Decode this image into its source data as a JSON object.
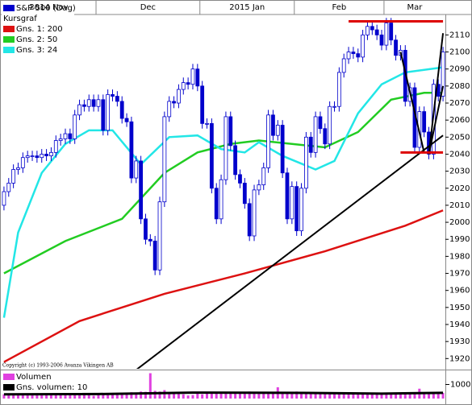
{
  "chart_data": [
    {
      "type": "candlestick",
      "name": "S&P-500 (Dag)",
      "subtitle": "Kursgraf",
      "color": "#0000cc",
      "categories": [
        "2014 Nov",
        null,
        null,
        null,
        null,
        null,
        null,
        null,
        null,
        null,
        null,
        null,
        null,
        null,
        null,
        null,
        null,
        null,
        null,
        null,
        "Dec",
        null,
        null,
        null,
        null,
        null,
        null,
        null,
        null,
        null,
        null,
        null,
        null,
        null,
        null,
        null,
        null,
        null,
        null,
        null,
        null,
        null,
        "2015 Jan",
        null,
        null,
        null,
        null,
        null,
        null,
        null,
        null,
        null,
        null,
        null,
        null,
        null,
        null,
        null,
        null,
        null,
        null,
        null,
        "Feb",
        null,
        null,
        null,
        null,
        null,
        null,
        null,
        null,
        null,
        null,
        null,
        null,
        null,
        null,
        null,
        null,
        null,
        null,
        "Mar",
        null,
        null,
        null,
        null,
        null,
        null,
        null,
        null,
        null,
        null,
        null,
        null
      ],
      "open": [
        2010,
        2018,
        2023,
        2031,
        2032,
        2038,
        2039,
        2039,
        2038,
        2040,
        2039,
        2041,
        2048,
        2049,
        2052,
        2049,
        2063,
        2069,
        2068,
        2072,
        2068,
        2072,
        2054,
        2075,
        2074,
        2071,
        2061,
        2059,
        2026,
        2036,
        2002,
        1990,
        1989,
        1972,
        2012,
        2062,
        2071,
        2070,
        2078,
        2082,
        2081,
        2090,
        2080,
        2058,
        2058,
        2020,
        2002,
        2025,
        2062,
        2045,
        2028,
        2023,
        2011,
        1992,
        2019,
        2022,
        2032,
        2063,
        2051,
        2057,
        2029,
        2002,
        2021,
        1995,
        2020,
        2050,
        2041,
        2062,
        2055,
        2046,
        2068,
        2068,
        2088,
        2096,
        2100,
        2099,
        2097,
        2110,
        2115,
        2113,
        2110,
        2104,
        2117,
        2107,
        2098,
        2101,
        2071,
        2079,
        2044,
        2065,
        2053,
        2040,
        2081,
        2074
      ],
      "high": [
        2021,
        2026,
        2034,
        2035,
        2041,
        2042,
        2042,
        2042,
        2043,
        2043,
        2044,
        2051,
        2052,
        2055,
        2055,
        2066,
        2072,
        2072,
        2075,
        2075,
        2075,
        2075,
        2078,
        2078,
        2077,
        2074,
        2064,
        2062,
        2039,
        2039,
        2005,
        1993,
        1992,
        2015,
        2065,
        2074,
        2074,
        2081,
        2085,
        2085,
        2093,
        2093,
        2083,
        2061,
        2061,
        2023,
        2028,
        2065,
        2065,
        2048,
        2031,
        2026,
        2014,
        2022,
        2025,
        2035,
        2066,
        2066,
        2060,
        2060,
        2032,
        2024,
        2024,
        2023,
        2053,
        2053,
        2065,
        2065,
        2058,
        2071,
        2071,
        2091,
        2099,
        2103,
        2103,
        2102,
        2113,
        2118,
        2118,
        2116,
        2113,
        2120,
        2120,
        2110,
        2104,
        2104,
        2082,
        2082,
        2068,
        2068,
        2056,
        2084,
        2084,
        2103
      ],
      "low": [
        2007,
        2015,
        2020,
        2028,
        2029,
        2035,
        2036,
        2035,
        2035,
        2036,
        2036,
        2038,
        2045,
        2046,
        2046,
        2046,
        2060,
        2065,
        2065,
        2065,
        2065,
        2051,
        2051,
        2071,
        2068,
        2058,
        2056,
        2023,
        2023,
        1999,
        1987,
        1986,
        1969,
        1969,
        2009,
        2059,
        2067,
        2067,
        2075,
        2078,
        2078,
        2077,
        2055,
        2055,
        2017,
        1999,
        1999,
        2022,
        2042,
        2025,
        2020,
        2008,
        1989,
        1989,
        2016,
        2019,
        2029,
        2048,
        2048,
        2026,
        1999,
        1999,
        1992,
        1992,
        2017,
        2038,
        2038,
        2052,
        2043,
        2043,
        2065,
        2065,
        2085,
        2093,
        2096,
        2094,
        2094,
        2107,
        2110,
        2107,
        2101,
        2101,
        2104,
        2095,
        2095,
        2068,
        2068,
        2041,
        2041,
        2050,
        2037,
        2037,
        2071,
        2071
      ],
      "close": [
        2018,
        2023,
        2031,
        2032,
        2038,
        2039,
        2039,
        2038,
        2040,
        2039,
        2041,
        2048,
        2049,
        2052,
        2049,
        2063,
        2069,
        2068,
        2072,
        2068,
        2072,
        2054,
        2075,
        2074,
        2071,
        2061,
        2059,
        2026,
        2036,
        2002,
        1990,
        1989,
        1972,
        2012,
        2062,
        2071,
        2070,
        2078,
        2082,
        2081,
        2090,
        2080,
        2058,
        2058,
        2020,
        2002,
        2025,
        2062,
        2045,
        2028,
        2023,
        2011,
        1992,
        2019,
        2022,
        2032,
        2063,
        2051,
        2057,
        2029,
        2002,
        2021,
        1995,
        2020,
        2050,
        2041,
        2062,
        2055,
        2046,
        2068,
        2068,
        2088,
        2096,
        2100,
        2099,
        2097,
        2110,
        2115,
        2113,
        2110,
        2104,
        2117,
        2107,
        2098,
        2101,
        2071,
        2079,
        2044,
        2065,
        2053,
        2040,
        2081,
        2074,
        2100
      ],
      "series": [
        {
          "name": "Gns. 1: 200",
          "color": "#dd1111",
          "x": [
            0,
            16,
            34,
            51,
            68,
            85,
            93
          ],
          "values": [
            1918,
            1942,
            1958,
            1970,
            1983,
            1998,
            2007
          ]
        },
        {
          "name": "Gns. 2: 50",
          "color": "#22cc22",
          "x": [
            0,
            13,
            25,
            34,
            41,
            48,
            54,
            61,
            68,
            75,
            82,
            89,
            93
          ],
          "values": [
            1970,
            1989,
            2002,
            2029,
            2041,
            2046,
            2048,
            2046,
            2044,
            2053,
            2072,
            2076,
            2076
          ]
        },
        {
          "name": "Gns. 3: 24",
          "color": "#22e6e6",
          "x": [
            0,
            3,
            8,
            13,
            18,
            23,
            29,
            35,
            41,
            46,
            51,
            54,
            59,
            66,
            70,
            75,
            80,
            85,
            93
          ],
          "values": [
            1944,
            1994,
            2029,
            2046,
            2054,
            2054,
            2034,
            2050,
            2051,
            2043,
            2041,
            2047,
            2039,
            2031,
            2036,
            2064,
            2081,
            2088,
            2091
          ]
        }
      ],
      "trend_lines": [
        {
          "color": "#000000",
          "x": [
            27.6,
            93
          ],
          "values": [
            1912.5,
            2051
          ]
        },
        {
          "color": "#000000",
          "x": [
            90,
            93
          ],
          "values": [
            2040,
            2111
          ]
        },
        {
          "color": "#000000",
          "x": [
            90,
            93
          ],
          "values": [
            2040,
            2080
          ]
        },
        {
          "color": "#000000",
          "x": [
            84,
            89
          ],
          "values": [
            2100,
            2041
          ]
        },
        {
          "color": "#dd0000",
          "x": [
            73,
            93
          ],
          "values": [
            2118,
            2118
          ]
        },
        {
          "color": "#dd0000",
          "x": [
            84,
            93
          ],
          "values": [
            2041,
            2041
          ]
        }
      ],
      "ylim": [
        1914,
        2122
      ],
      "yticks": [
        1920,
        1930,
        1940,
        1950,
        1960,
        1970,
        1980,
        1990,
        2000,
        2010,
        2020,
        2030,
        2040,
        2050,
        2060,
        2070,
        2080,
        2090,
        2100,
        2110
      ],
      "copyright": "Copyright (c) 1993-2006 Avanza Vikingen AB"
    },
    {
      "type": "volume",
      "series": [
        {
          "name": "Volumen",
          "color": "#e040e0",
          "values": [
            300,
            320,
            280,
            350,
            300,
            310,
            290,
            330,
            280,
            300,
            310,
            340,
            290,
            300,
            320,
            350,
            300,
            280,
            260,
            200,
            350,
            380,
            330,
            340,
            360,
            400,
            380,
            450,
            420,
            500,
            480,
            1800,
            550,
            500,
            600,
            450,
            380,
            400,
            300,
            220,
            250,
            380,
            300,
            350,
            450,
            480,
            400,
            420,
            380,
            420,
            400,
            450,
            500,
            400,
            380,
            420,
            350,
            380,
            800,
            420,
            400,
            450,
            500,
            450,
            420,
            380,
            400,
            380,
            360,
            340,
            350,
            330,
            320,
            340,
            300,
            330,
            320,
            340,
            300,
            380,
            400,
            420,
            400,
            380,
            420,
            450,
            380,
            420,
            700,
            400,
            380,
            420,
            450,
            400
          ]
        },
        {
          "name": "Gns. volumen: 10",
          "color": "#000000",
          "x": [
            0,
            20,
            40,
            60,
            80,
            93
          ],
          "values": [
            300,
            320,
            420,
            410,
            350,
            410
          ]
        }
      ],
      "ylim": [
        0,
        2000
      ],
      "yticks": [
        1000
      ]
    }
  ]
}
